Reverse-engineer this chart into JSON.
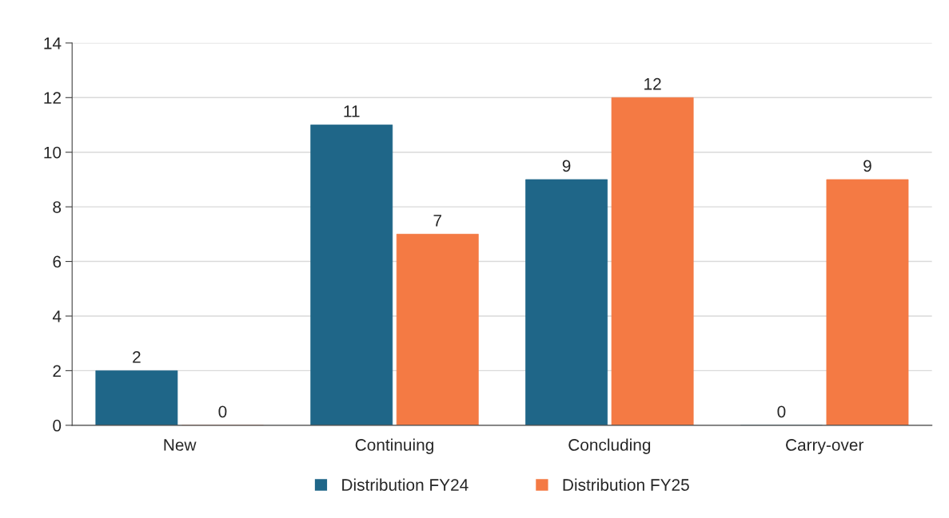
{
  "chart_data": {
    "type": "bar",
    "categories": [
      "New",
      "Continuing",
      "Concluding",
      "Carry-over"
    ],
    "series": [
      {
        "name": "Distribution FY24",
        "color": "#1f6688",
        "values": [
          2,
          11,
          9,
          0
        ]
      },
      {
        "name": "Distribution FY25",
        "color": "#f47a44",
        "values": [
          0,
          7,
          12,
          9
        ]
      }
    ],
    "ylim": [
      0,
      14
    ],
    "yticks": [
      0,
      2,
      4,
      6,
      8,
      10,
      12,
      14
    ],
    "grid": "y",
    "legend": "bottom",
    "data_labels": true
  }
}
